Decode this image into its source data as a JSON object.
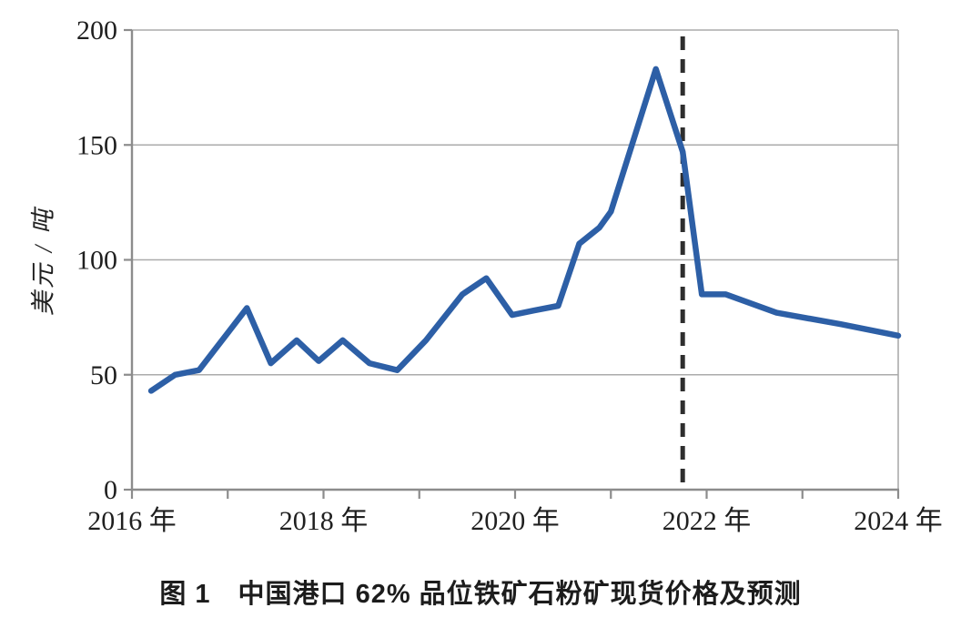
{
  "chart_data": {
    "type": "line",
    "caption": "图 1　中国港口 62% 品位铁矿石粉矿现货价格及预测",
    "ylabel": "美元 / 吨",
    "xlim": [
      2016,
      2024
    ],
    "ylim": [
      0,
      200
    ],
    "grid": true,
    "legend": "none",
    "y_ticks": [
      {
        "value": 0,
        "label": "0"
      },
      {
        "value": 50,
        "label": "50"
      },
      {
        "value": 100,
        "label": "100"
      },
      {
        "value": 150,
        "label": "150"
      },
      {
        "value": 200,
        "label": "200"
      }
    ],
    "x_ticks": [
      {
        "year": 2016,
        "label": "2016 年"
      },
      {
        "year": 2017,
        "label": ""
      },
      {
        "year": 2018,
        "label": "2018 年"
      },
      {
        "year": 2019,
        "label": ""
      },
      {
        "year": 2020,
        "label": "2020 年"
      },
      {
        "year": 2021,
        "label": ""
      },
      {
        "year": 2022,
        "label": "2022 年"
      },
      {
        "year": 2023,
        "label": ""
      },
      {
        "year": 2024,
        "label": "2024 年"
      }
    ],
    "series": [
      {
        "name": "中国港口62%品位铁矿石粉矿现货价格及预测",
        "x": [
          2016.2,
          2016.45,
          2016.7,
          2017.2,
          2017.45,
          2017.72,
          2017.95,
          2018.2,
          2018.48,
          2018.77,
          2019.07,
          2019.45,
          2019.7,
          2019.97,
          2020.2,
          2020.45,
          2020.67,
          2020.88,
          2021.0,
          2021.47,
          2021.75,
          2021.95,
          2022.2,
          2022.73,
          2023.4,
          2024.0
        ],
        "y": [
          43,
          50,
          52,
          79,
          55,
          65,
          56,
          65,
          55,
          52,
          65,
          85,
          92,
          76,
          78,
          80,
          107,
          114,
          121,
          183,
          147,
          85,
          85,
          77,
          72,
          67
        ]
      }
    ],
    "forecast_divider_x": 2021.75,
    "colors": {
      "line": "#2d5fa6",
      "divider": "#2e2e2e",
      "grid": "#ababab",
      "axis": "#8c8c8c",
      "text": "#1f1f1f"
    }
  }
}
